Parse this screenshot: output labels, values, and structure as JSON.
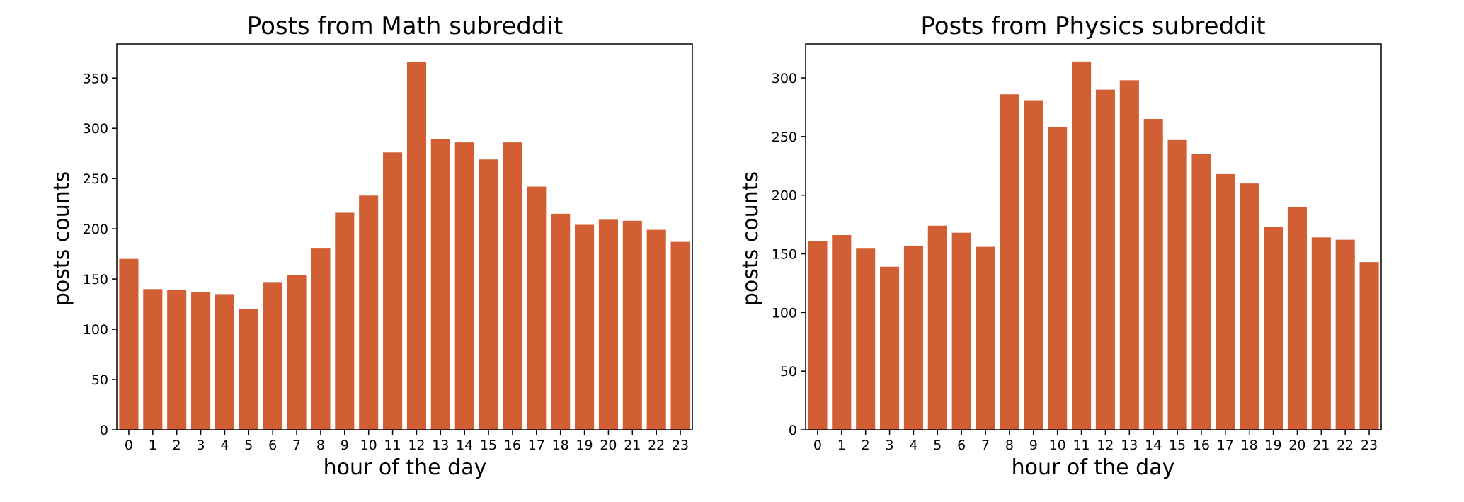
{
  "figure": {
    "bar_color": "#d15f33"
  },
  "chart_data": [
    {
      "type": "bar",
      "title": "Posts from Math subreddit",
      "xlabel": "hour of the day",
      "ylabel": "posts counts",
      "categories": [
        "0",
        "1",
        "2",
        "3",
        "4",
        "5",
        "6",
        "7",
        "8",
        "9",
        "10",
        "11",
        "12",
        "13",
        "14",
        "15",
        "16",
        "17",
        "18",
        "19",
        "20",
        "21",
        "22",
        "23"
      ],
      "values": [
        170,
        140,
        139,
        137,
        135,
        120,
        147,
        154,
        181,
        216,
        233,
        276,
        366,
        289,
        286,
        269,
        286,
        242,
        215,
        204,
        209,
        208,
        199,
        187
      ],
      "ylim": [
        0,
        384
      ],
      "yticks": [
        0,
        50,
        100,
        150,
        200,
        250,
        300,
        350
      ],
      "grid": false,
      "legend": "none"
    },
    {
      "type": "bar",
      "title": "Posts from Physics subreddit",
      "xlabel": "hour of the day",
      "ylabel": "posts counts",
      "categories": [
        "0",
        "1",
        "2",
        "3",
        "4",
        "5",
        "6",
        "7",
        "8",
        "9",
        "10",
        "11",
        "12",
        "13",
        "14",
        "15",
        "16",
        "17",
        "18",
        "19",
        "20",
        "21",
        "22",
        "23"
      ],
      "values": [
        161,
        166,
        155,
        139,
        157,
        174,
        168,
        156,
        286,
        281,
        258,
        314,
        290,
        298,
        265,
        247,
        235,
        218,
        210,
        173,
        190,
        164,
        162,
        143
      ],
      "ylim": [
        0,
        329
      ],
      "yticks": [
        0,
        50,
        100,
        150,
        200,
        250,
        300
      ],
      "grid": false,
      "legend": "none"
    }
  ]
}
